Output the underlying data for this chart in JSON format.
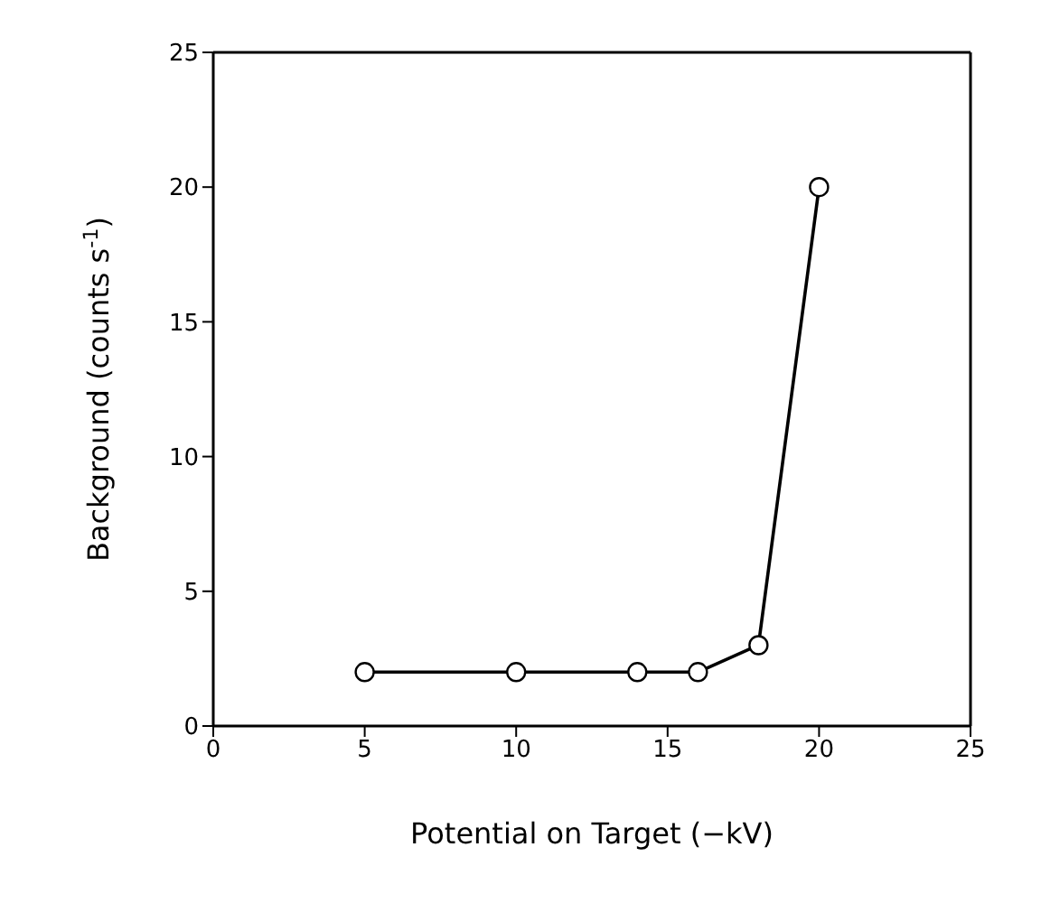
{
  "chart_data": {
    "type": "line",
    "xlabel": "Potential on Target (−kV)",
    "ylabel": "Background (counts s$^{-1}$)",
    "x": [
      5,
      10,
      14,
      16,
      18,
      20
    ],
    "series": [
      {
        "color": "#000000",
        "values": [
          2,
          2,
          2,
          2,
          3,
          20
        ]
      }
    ],
    "xlim": [
      0,
      25
    ],
    "xticks": [
      0,
      5,
      10,
      15,
      20,
      25
    ],
    "ylim": [
      0,
      25
    ],
    "yticks": [
      0,
      5,
      10,
      15,
      20,
      25
    ],
    "marker": "circle",
    "line_style": "solid"
  }
}
